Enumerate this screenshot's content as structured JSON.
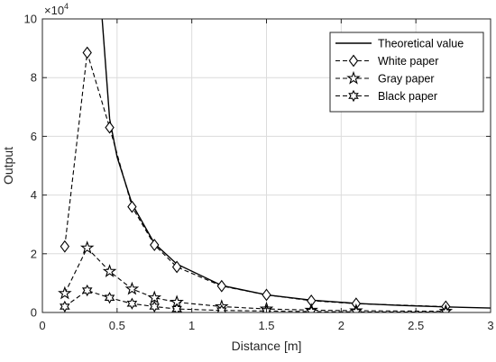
{
  "chart_data": {
    "type": "line",
    "xlabel": "Distance [m]",
    "ylabel": "Output",
    "y_exponent_label": "×10",
    "y_exponent_power": "4",
    "xlim": [
      0,
      3
    ],
    "ylim": [
      0,
      10
    ],
    "grid": true,
    "legend_position": "top-right",
    "x_ticks": [
      0,
      0.5,
      1,
      1.5,
      2,
      2.5,
      3
    ],
    "x_tick_labels": [
      "0",
      "0.5",
      "1",
      "1.5",
      "2",
      "2.5",
      "3"
    ],
    "y_ticks": [
      0,
      2,
      4,
      6,
      8,
      10
    ],
    "y_tick_labels": [
      "0",
      "2",
      "4",
      "6",
      "8",
      "10"
    ],
    "series": [
      {
        "name": "Theoretical value",
        "style": "solid",
        "marker": "none",
        "x": [
          0.4,
          0.45,
          0.5,
          0.6,
          0.75,
          0.9,
          1.2,
          1.5,
          1.8,
          2.1,
          2.4,
          2.7,
          3.0
        ],
        "y": [
          10,
          6.6,
          5.3,
          3.7,
          2.35,
          1.65,
          0.92,
          0.6,
          0.42,
          0.31,
          0.24,
          0.19,
          0.15
        ]
      },
      {
        "name": "White paper",
        "style": "dashed",
        "marker": "diamond",
        "x": [
          0.15,
          0.3,
          0.45,
          0.6,
          0.75,
          0.9,
          1.2,
          1.5,
          1.8,
          2.1,
          2.7
        ],
        "y": [
          2.25,
          8.85,
          6.3,
          3.6,
          2.3,
          1.55,
          0.9,
          0.6,
          0.4,
          0.3,
          0.2
        ]
      },
      {
        "name": "Gray paper",
        "style": "dashed",
        "marker": "star5",
        "x": [
          0.15,
          0.3,
          0.45,
          0.6,
          0.75,
          0.9,
          1.2,
          1.5,
          1.8,
          2.1,
          2.7
        ],
        "y": [
          0.65,
          2.2,
          1.4,
          0.8,
          0.5,
          0.35,
          0.2,
          0.12,
          0.08,
          0.06,
          0.04
        ]
      },
      {
        "name": "Black paper",
        "style": "dashed",
        "marker": "star6",
        "x": [
          0.15,
          0.3,
          0.45,
          0.6,
          0.75,
          0.9,
          1.2,
          1.5,
          1.8,
          2.1,
          2.7
        ],
        "y": [
          0.2,
          0.75,
          0.5,
          0.3,
          0.2,
          0.12,
          0.07,
          0.05,
          0.03,
          0.02,
          0.01
        ]
      }
    ]
  }
}
